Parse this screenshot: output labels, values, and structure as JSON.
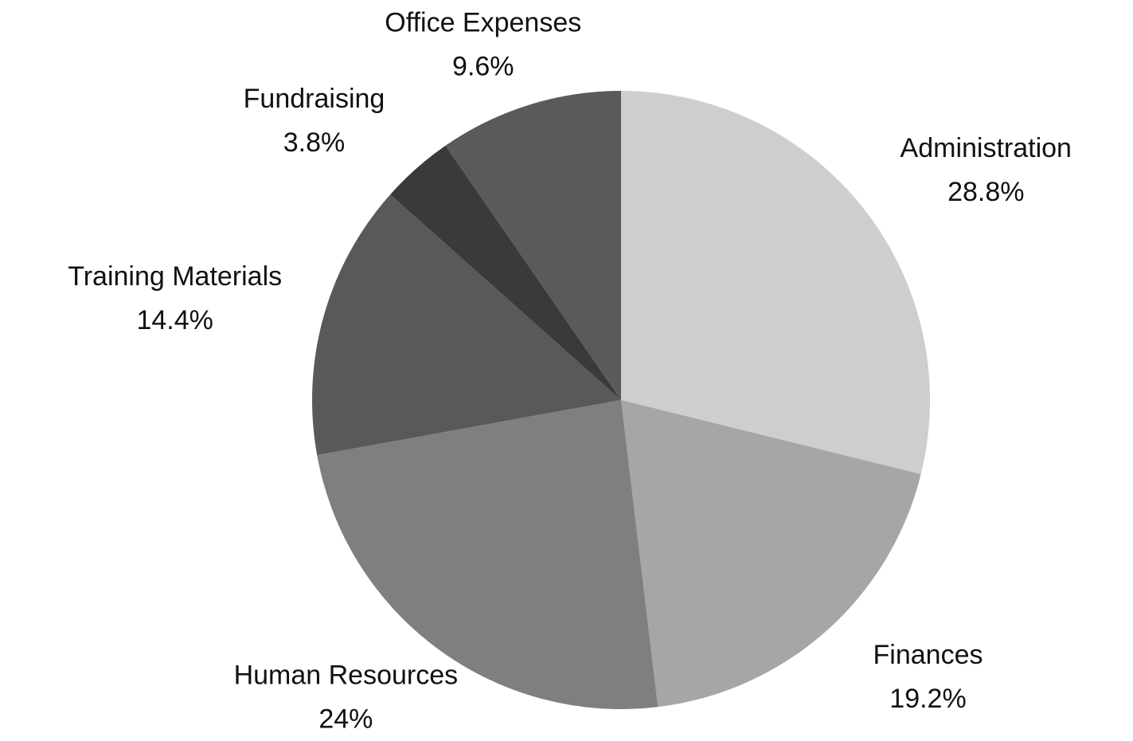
{
  "chart_data": {
    "type": "pie",
    "categories": [
      "Administration",
      "Finances",
      "Human Resources",
      "Training Materials",
      "Fundraising",
      "Office Expenses"
    ],
    "values": [
      28.8,
      19.2,
      24,
      14.4,
      3.8,
      9.6
    ],
    "value_labels": [
      "28.8%",
      "19.2%",
      "24%",
      "14.4%",
      "3.8%",
      "9.6%"
    ],
    "colors": [
      "#cdcfce",
      "#a5a6a8",
      "#7e7f81",
      "#58595b",
      "#3a3a3a",
      "#5a5a5a"
    ]
  }
}
